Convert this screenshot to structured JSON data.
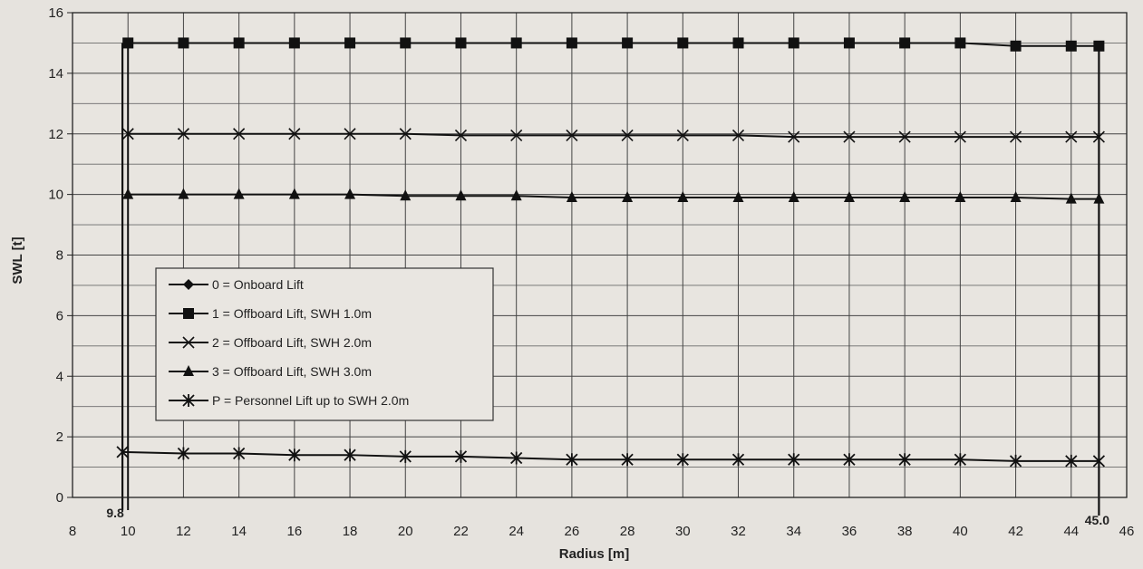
{
  "chart_data": {
    "type": "line",
    "title": "",
    "xlabel": "Radius [m]",
    "ylabel": "SWL [t]",
    "xlim": [
      8,
      46
    ],
    "ylim": [
      0,
      16
    ],
    "x_ticks": [
      8,
      10,
      12,
      14,
      16,
      18,
      20,
      22,
      24,
      26,
      28,
      30,
      32,
      34,
      36,
      38,
      40,
      42,
      44,
      46
    ],
    "y_ticks": [
      0,
      2,
      4,
      6,
      8,
      10,
      12,
      14,
      16
    ],
    "grid": true,
    "legend_position": "lower-left",
    "annotations": [
      {
        "text": "9.8",
        "x": 9.8
      },
      {
        "text": "45.0",
        "x": 45.0
      }
    ],
    "series": [
      {
        "name": "0 = Onboard Lift",
        "marker": "diamond",
        "x": [],
        "values": []
      },
      {
        "name": "1 = Offboard Lift, SWH 1.0m",
        "marker": "square",
        "x": [
          10,
          12,
          14,
          16,
          18,
          20,
          22,
          24,
          26,
          28,
          30,
          32,
          34,
          36,
          38,
          40,
          42,
          44,
          45
        ],
        "values": [
          15,
          15,
          15,
          15,
          15,
          15,
          15,
          15,
          15,
          15,
          15,
          15,
          15,
          15,
          15,
          15,
          14.9,
          14.9,
          14.9
        ]
      },
      {
        "name": "2 = Offboard Lift, SWH 2.0m",
        "marker": "x",
        "x": [
          10,
          12,
          14,
          16,
          18,
          20,
          22,
          24,
          26,
          28,
          30,
          32,
          34,
          36,
          38,
          40,
          42,
          44,
          45
        ],
        "values": [
          12,
          12,
          12,
          12,
          12,
          12,
          11.95,
          11.95,
          11.95,
          11.95,
          11.95,
          11.95,
          11.9,
          11.9,
          11.9,
          11.9,
          11.9,
          11.9,
          11.9
        ]
      },
      {
        "name": "3 = Offboard Lift, SWH 3.0m",
        "marker": "triangle",
        "x": [
          10,
          12,
          14,
          16,
          18,
          20,
          22,
          24,
          26,
          28,
          30,
          32,
          34,
          36,
          38,
          40,
          42,
          44,
          45
        ],
        "values": [
          10,
          10,
          10,
          10,
          10,
          9.95,
          9.95,
          9.95,
          9.9,
          9.9,
          9.9,
          9.9,
          9.9,
          9.9,
          9.9,
          9.9,
          9.9,
          9.85,
          9.85
        ]
      },
      {
        "name": "P = Personnel Lift up to SWH 2.0m",
        "marker": "asterisk",
        "x": [
          9.8,
          12,
          14,
          16,
          18,
          20,
          22,
          24,
          26,
          28,
          30,
          32,
          34,
          36,
          38,
          40,
          42,
          44,
          45
        ],
        "values": [
          1.5,
          1.45,
          1.45,
          1.4,
          1.4,
          1.35,
          1.35,
          1.3,
          1.25,
          1.25,
          1.25,
          1.25,
          1.25,
          1.25,
          1.25,
          1.25,
          1.2,
          1.2,
          1.2
        ]
      }
    ]
  }
}
